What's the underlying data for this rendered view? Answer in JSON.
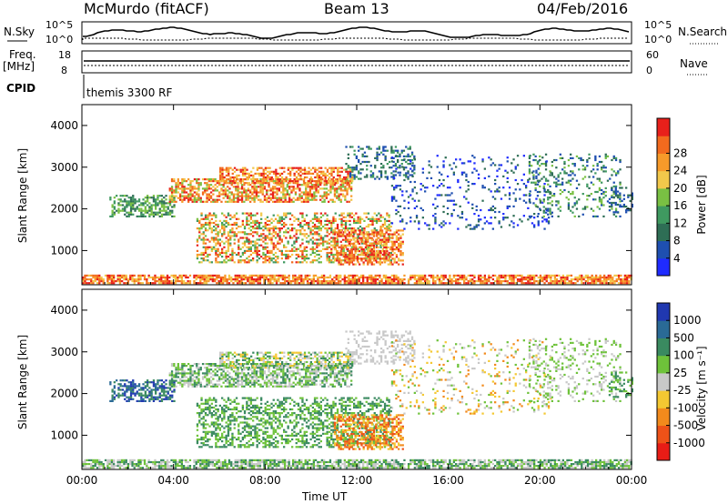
{
  "header": {
    "station": "McMurdo (fitACF)",
    "beam": "Beam 13",
    "date": "04/Feb/2016"
  },
  "top_panels": {
    "nsky_label": "N.Sky",
    "nsearch_label": "N.Search",
    "nsky_tick_top": "10^5",
    "nsky_tick_bottom": "10^0",
    "nsearch_tick_top": "10^5",
    "nsearch_tick_bottom": "10^0",
    "freq_label_line1": "Freq.",
    "freq_label_line2": "[MHz]",
    "freq_tick_top": "18",
    "freq_tick_bottom": "8",
    "nave_label": "Nave",
    "nave_tick_top": "60",
    "nave_tick_bottom": "0",
    "cpid_label": "CPID",
    "cpid_value": "themis 3300 RF"
  },
  "chart_data": [
    {
      "type": "heatmap",
      "name": "power",
      "ylabel": "Slant Range [km]",
      "ylim": [
        180,
        4500
      ],
      "y_ticks": [
        "1000",
        "2000",
        "3000",
        "4000"
      ],
      "x_ticks": [
        "00:00",
        "04:00",
        "08:00",
        "12:00",
        "16:00",
        "20:00",
        "00:00"
      ],
      "colorbar_label": "Power [dB]",
      "colorbar_ticks": [
        "4",
        "8",
        "12",
        "16",
        "20",
        "24",
        "28"
      ],
      "colorscale": [
        "#1f2bff",
        "#1e4fb0",
        "#2e6e55",
        "#3f9960",
        "#79c043",
        "#f2c84b",
        "#f79a2a",
        "#f26a1e",
        "#e8201b"
      ]
    },
    {
      "type": "heatmap",
      "name": "velocity",
      "ylabel": "Slant Range [km]",
      "xlabel": "Time UT",
      "ylim": [
        180,
        4500
      ],
      "y_ticks": [
        "1000",
        "2000",
        "3000",
        "4000"
      ],
      "x_ticks": [
        "00:00",
        "04:00",
        "08:00",
        "12:00",
        "16:00",
        "20:00",
        "00:00"
      ],
      "colorbar_label": "Velocity [m s⁻¹]",
      "colorbar_ticks": [
        "1000",
        "500",
        "100",
        "25",
        "-25",
        "-100",
        "-500",
        "-1000"
      ],
      "colorscale": [
        "#2038b0",
        "#2a6a96",
        "#3a8a60",
        "#6ec23a",
        "#c8c8c8",
        "#f4c832",
        "#f28a1c",
        "#ee5218",
        "#e81c16"
      ]
    }
  ]
}
